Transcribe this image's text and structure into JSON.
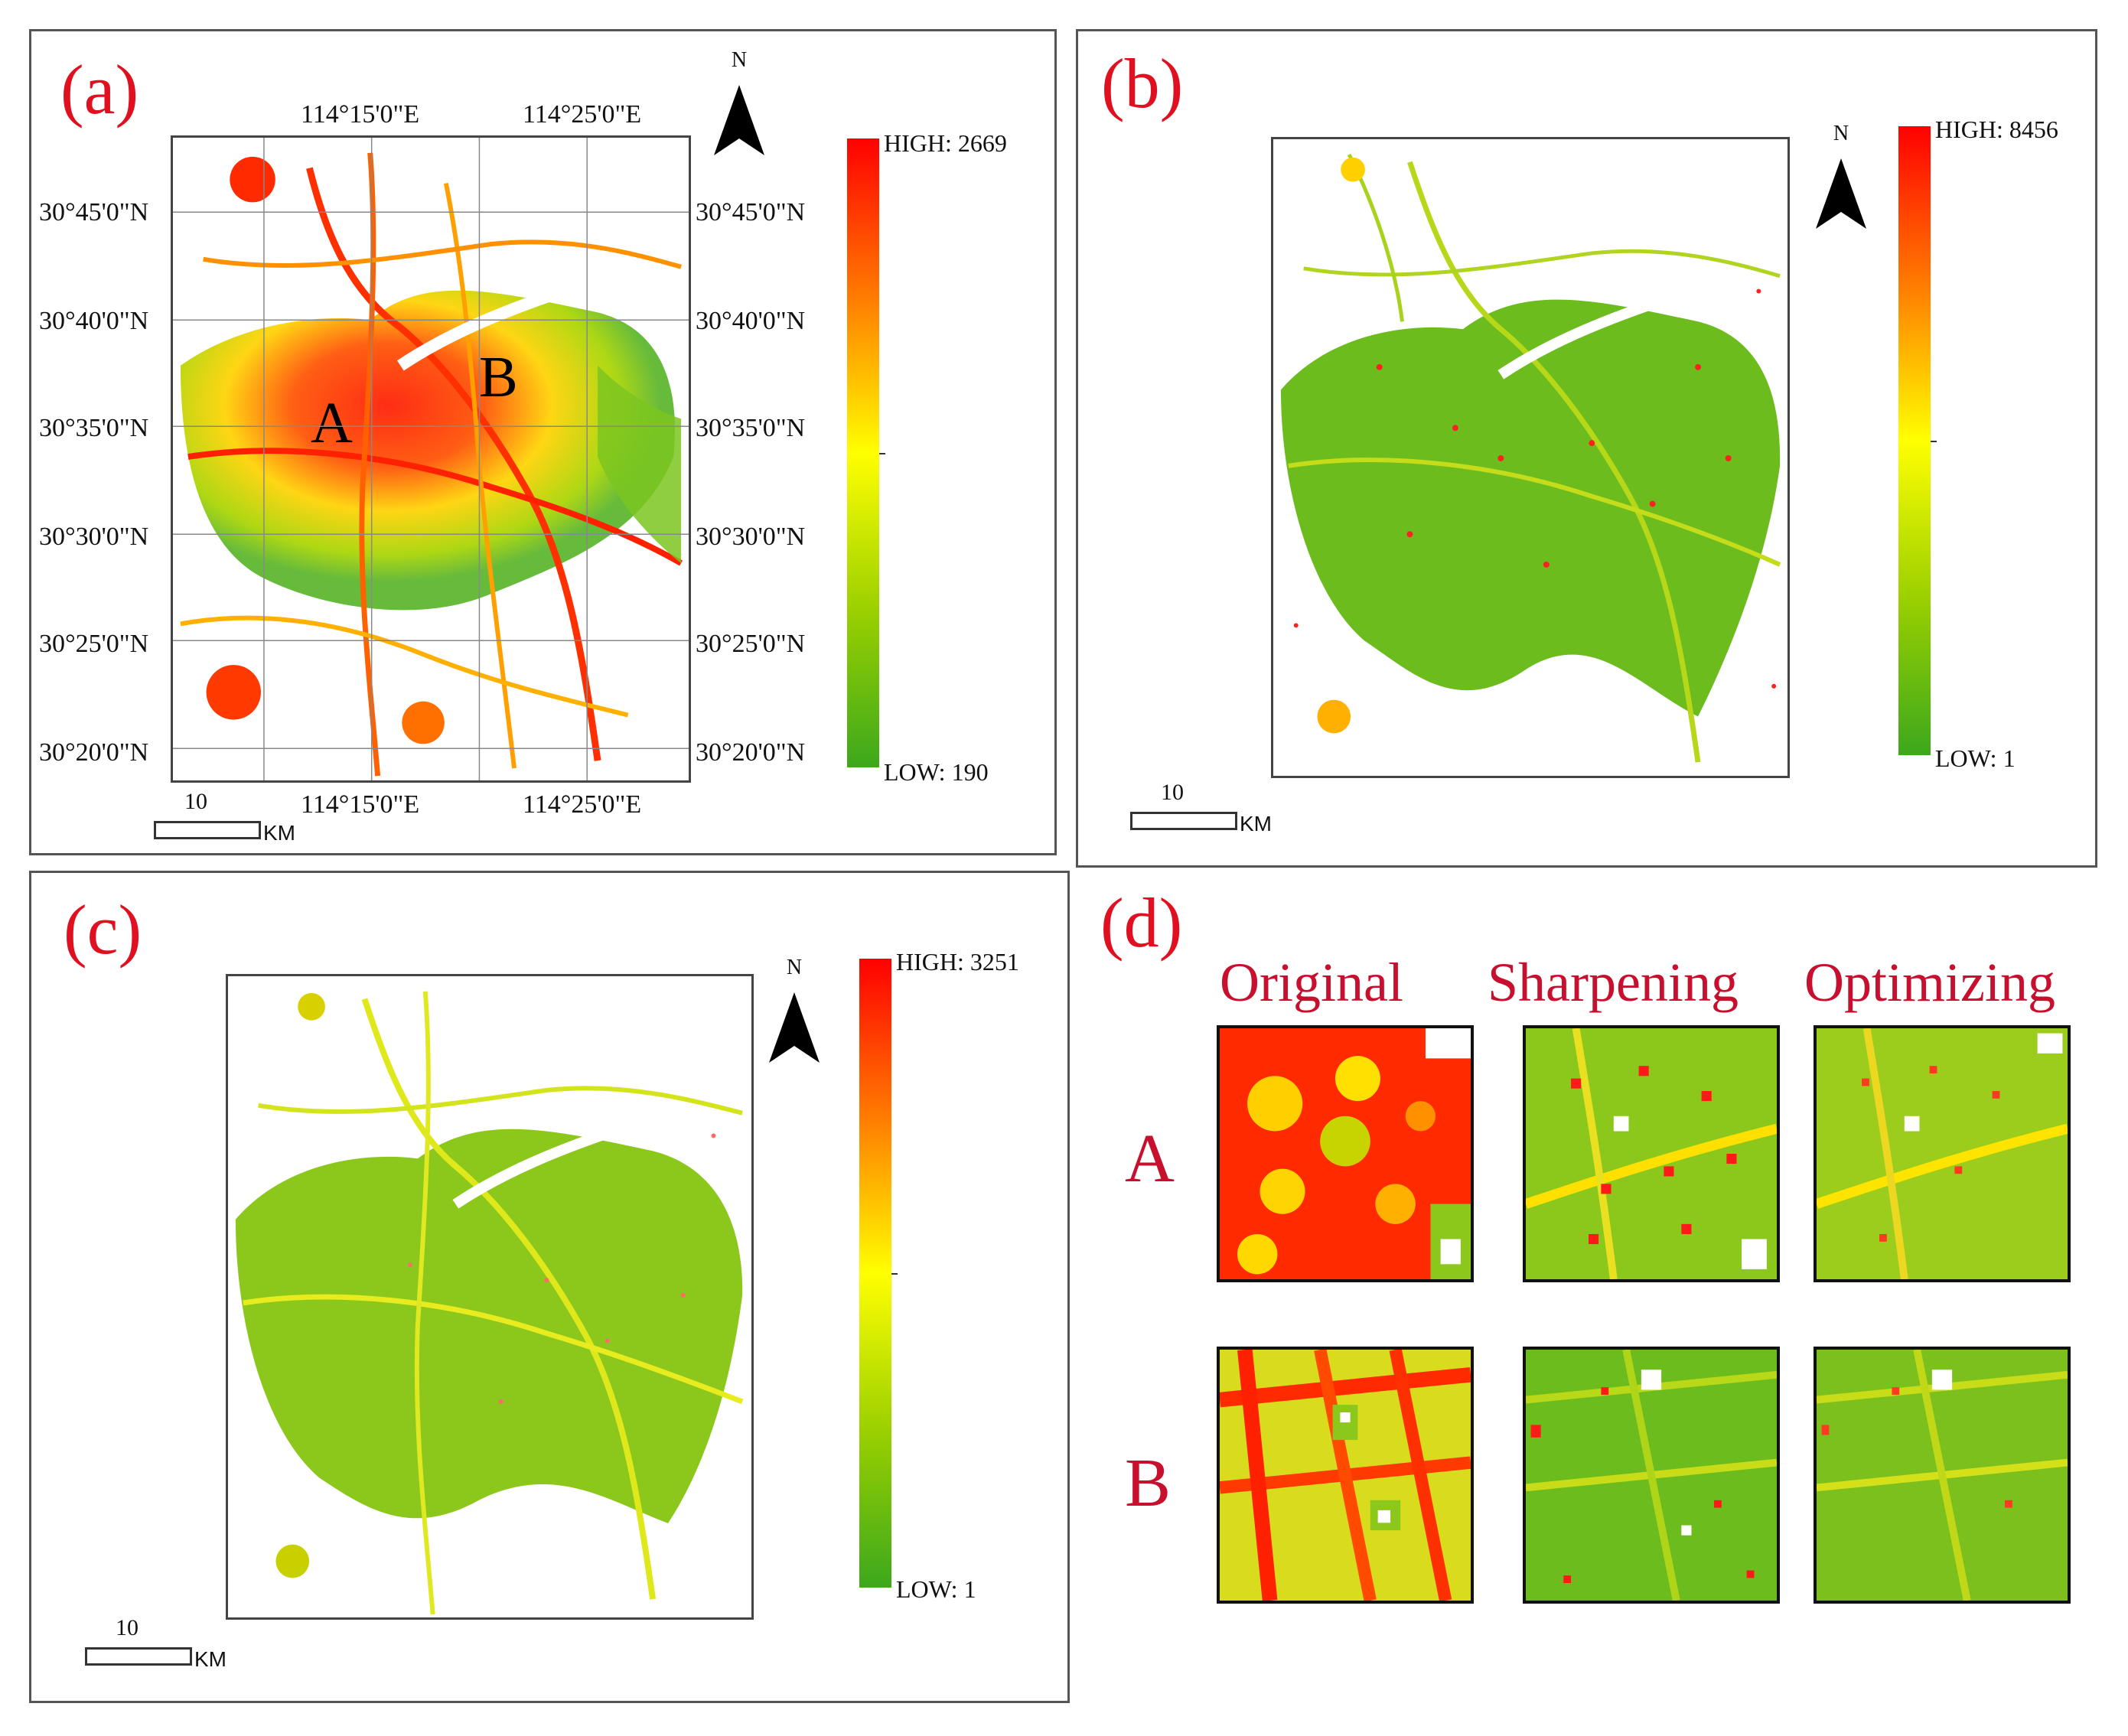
{
  "panels": {
    "a": {
      "label": "(a)",
      "top_lon_labels": [
        "114°15'0\"E",
        "114°25'0\"E"
      ],
      "bottom_lon_labels": [
        "114°15'0\"E",
        "114°25'0\"E"
      ],
      "lat_labels": [
        "30°45'0\"N",
        "30°40'0\"N",
        "30°35'0\"N",
        "30°30'0\"N",
        "30°25'0\"N",
        "30°20'0\"N"
      ],
      "legend_high": "HIGH: 2669",
      "legend_low": "LOW: 190",
      "north": "N",
      "scale_value": "10",
      "scale_unit": "KM",
      "marker_a": "A",
      "marker_b": "B"
    },
    "b": {
      "label": "(b)",
      "legend_high": "HIGH: 8456",
      "legend_low": "LOW: 1",
      "north": "N",
      "scale_value": "10",
      "scale_unit": "KM"
    },
    "c": {
      "label": "(c)",
      "legend_high": "HIGH: 3251",
      "legend_low": "LOW: 1",
      "north": "N",
      "scale_value": "10",
      "scale_unit": "KM"
    },
    "d": {
      "label": "(d)",
      "columns": [
        "Original",
        "Sharpening",
        "Optimizing"
      ],
      "rows": [
        "A",
        "B"
      ]
    }
  },
  "colors": {
    "high": "#ff0000",
    "mid": "#ffff00",
    "low": "#3ca81c",
    "label_red": "#e01020",
    "heading_red": "#c8102e"
  }
}
